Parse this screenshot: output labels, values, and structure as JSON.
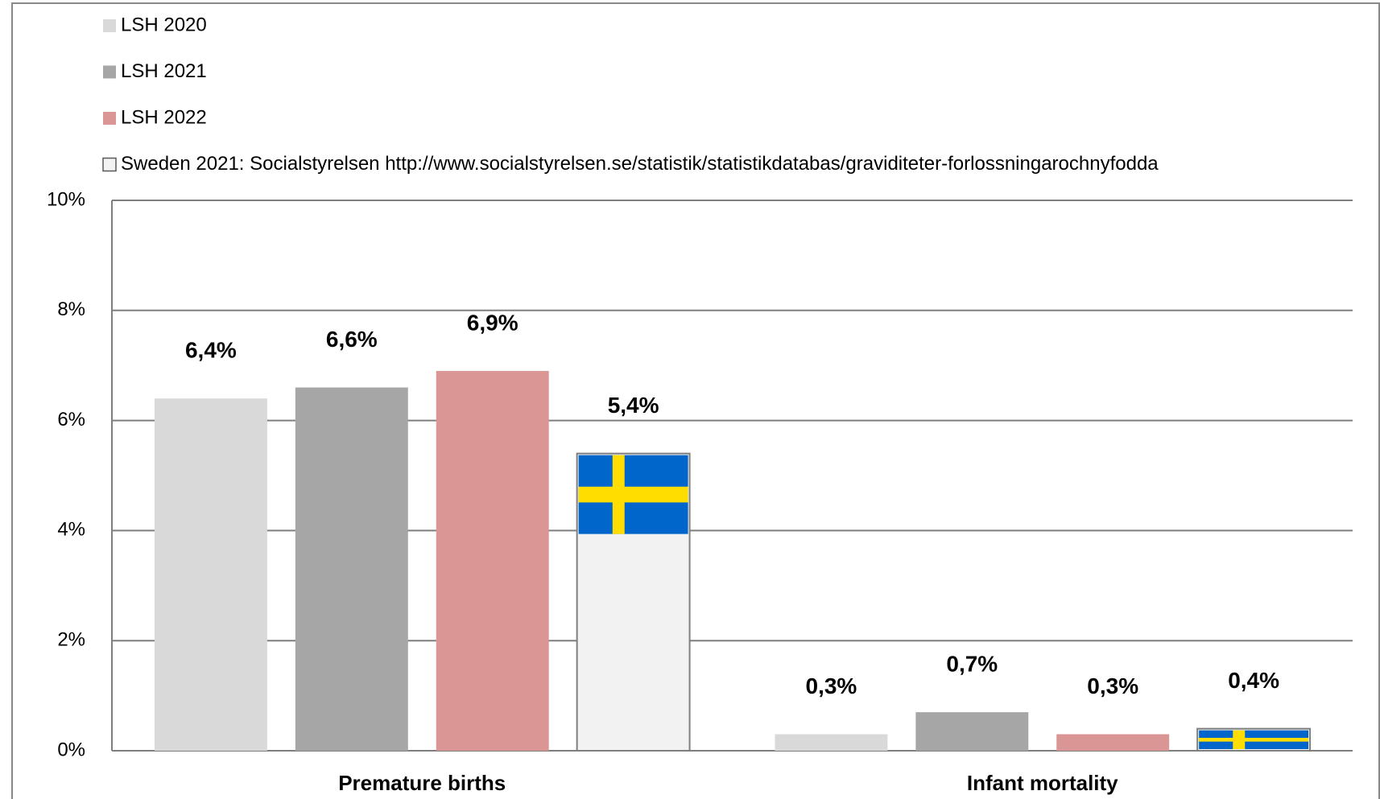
{
  "chart_data": {
    "type": "bar",
    "categories": [
      "Premature births",
      "Infant mortality"
    ],
    "series": [
      {
        "name": "LSH 2020",
        "color": "#d9d9d9",
        "values": [
          6.4,
          0.3
        ],
        "value_labels": [
          "6,4%",
          "0,3%"
        ]
      },
      {
        "name": "LSH 2021",
        "color": "#a6a6a6",
        "values": [
          6.6,
          0.7
        ],
        "value_labels": [
          "6,6%",
          "0,7%"
        ]
      },
      {
        "name": "LSH 2022",
        "color": "#d99694",
        "values": [
          6.9,
          0.3
        ],
        "value_labels": [
          "6,9%",
          "0,3%"
        ]
      },
      {
        "name": "Sweden 2021: Socialstyrelsen http://www.socialstyrelsen.se/statistik/statistikdatabas/graviditeter-forlossningarochnyfodda",
        "color": "#f2f2f2",
        "values": [
          5.4,
          0.4
        ],
        "value_labels": [
          "5,4%",
          "0,4%"
        ]
      }
    ],
    "ylim": [
      0,
      10
    ],
    "yticks": [
      {
        "value": 0,
        "label": "0%"
      },
      {
        "value": 2,
        "label": "2%"
      },
      {
        "value": 4,
        "label": "4%"
      },
      {
        "value": 6,
        "label": "6%"
      },
      {
        "value": 8,
        "label": "8%"
      },
      {
        "value": 10,
        "label": "10%"
      }
    ],
    "grid": true,
    "legend": "top"
  }
}
